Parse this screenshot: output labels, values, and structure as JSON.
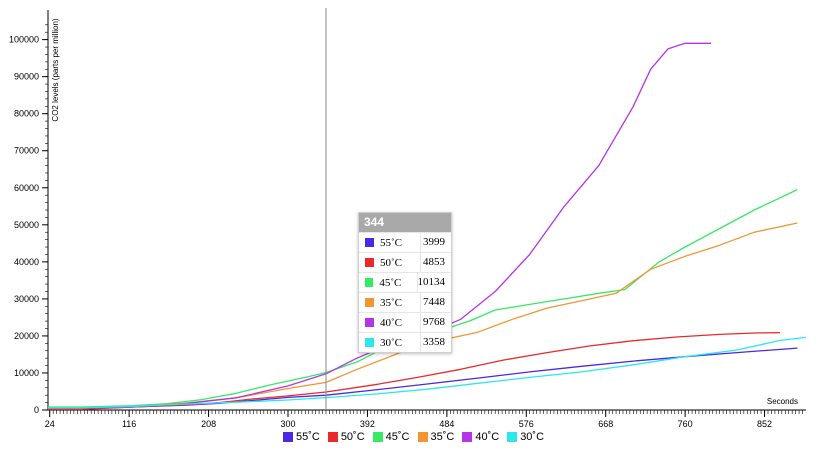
{
  "chart_data": {
    "type": "line",
    "ylabel": "CO2 levels (parts per million)",
    "xlabel": "Seconds",
    "xlim": [
      22,
      900
    ],
    "ylim": [
      0,
      108000
    ],
    "x_ticks": [
      24,
      116,
      208,
      300,
      392,
      484,
      576,
      668,
      760,
      852
    ],
    "y_ticks": [
      0,
      10000,
      20000,
      30000,
      40000,
      50000,
      60000,
      70000,
      80000,
      90000,
      100000
    ],
    "grid": false,
    "legend_position": "bottom",
    "series": [
      {
        "name": "55˚C",
        "color": "#4a28e6",
        "points": [
          [
            22,
            300
          ],
          [
            60,
            300
          ],
          [
            120,
            800
          ],
          [
            180,
            1300
          ],
          [
            220,
            1800
          ],
          [
            260,
            2600
          ],
          [
            300,
            3400
          ],
          [
            344,
            3999
          ],
          [
            400,
            5400
          ],
          [
            460,
            7000
          ],
          [
            520,
            8600
          ],
          [
            580,
            10300
          ],
          [
            640,
            11800
          ],
          [
            700,
            13200
          ],
          [
            760,
            14400
          ],
          [
            820,
            15500
          ],
          [
            890,
            16700
          ]
        ]
      },
      {
        "name": "50˚C",
        "color": "#e82a2a",
        "points": [
          [
            22,
            200
          ],
          [
            60,
            200
          ],
          [
            120,
            800
          ],
          [
            180,
            1400
          ],
          [
            220,
            2000
          ],
          [
            260,
            3000
          ],
          [
            300,
            3800
          ],
          [
            344,
            4853
          ],
          [
            400,
            6800
          ],
          [
            450,
            8800
          ],
          [
            500,
            11000
          ],
          [
            550,
            13500
          ],
          [
            600,
            15500
          ],
          [
            650,
            17300
          ],
          [
            700,
            18700
          ],
          [
            750,
            19700
          ],
          [
            800,
            20400
          ],
          [
            840,
            20800
          ],
          [
            870,
            20900
          ]
        ]
      },
      {
        "name": "45˚C",
        "color": "#36ea63",
        "points": [
          [
            22,
            800
          ],
          [
            60,
            800
          ],
          [
            120,
            1200
          ],
          [
            160,
            1700
          ],
          [
            200,
            2800
          ],
          [
            240,
            4500
          ],
          [
            280,
            6800
          ],
          [
            320,
            8800
          ],
          [
            344,
            10134
          ],
          [
            380,
            13000
          ],
          [
            430,
            19000
          ],
          [
            470,
            21000
          ],
          [
            510,
            24000
          ],
          [
            540,
            27000
          ],
          [
            580,
            28500
          ],
          [
            620,
            30000
          ],
          [
            660,
            31500
          ],
          [
            690,
            32500
          ],
          [
            730,
            40000
          ],
          [
            760,
            44000
          ],
          [
            800,
            49000
          ],
          [
            840,
            54000
          ],
          [
            890,
            59500
          ]
        ]
      },
      {
        "name": "35˚C",
        "color": "#f39530",
        "points": [
          [
            22,
            500
          ],
          [
            60,
            500
          ],
          [
            120,
            900
          ],
          [
            180,
            1800
          ],
          [
            240,
            3300
          ],
          [
            300,
            5800
          ],
          [
            344,
            7448
          ],
          [
            380,
            11000
          ],
          [
            430,
            15500
          ],
          [
            480,
            19000
          ],
          [
            520,
            21000
          ],
          [
            560,
            24500
          ],
          [
            600,
            27500
          ],
          [
            640,
            29500
          ],
          [
            680,
            31500
          ],
          [
            720,
            38000
          ],
          [
            760,
            41500
          ],
          [
            800,
            44500
          ],
          [
            840,
            48000
          ],
          [
            890,
            50500
          ]
        ]
      },
      {
        "name": "40˚C",
        "color": "#b435e8",
        "points": [
          [
            22,
            500
          ],
          [
            60,
            500
          ],
          [
            120,
            800
          ],
          [
            180,
            1700
          ],
          [
            240,
            3300
          ],
          [
            300,
            6500
          ],
          [
            344,
            9768
          ],
          [
            380,
            14000
          ],
          [
            420,
            18000
          ],
          [
            470,
            21500
          ],
          [
            500,
            24500
          ],
          [
            540,
            32000
          ],
          [
            580,
            42000
          ],
          [
            620,
            55000
          ],
          [
            660,
            66000
          ],
          [
            700,
            82000
          ],
          [
            720,
            92000
          ],
          [
            740,
            97500
          ],
          [
            760,
            99000
          ],
          [
            790,
            99000
          ]
        ]
      },
      {
        "name": "30˚C",
        "color": "#2ce8ea",
        "points": [
          [
            22,
            600
          ],
          [
            60,
            600
          ],
          [
            120,
            1000
          ],
          [
            180,
            1600
          ],
          [
            240,
            2100
          ],
          [
            300,
            2700
          ],
          [
            344,
            3358
          ],
          [
            400,
            4300
          ],
          [
            460,
            5600
          ],
          [
            520,
            7200
          ],
          [
            580,
            8800
          ],
          [
            640,
            10300
          ],
          [
            700,
            12200
          ],
          [
            760,
            14400
          ],
          [
            820,
            16200
          ],
          [
            870,
            18800
          ],
          [
            900,
            19600
          ]
        ]
      }
    ],
    "hover": {
      "x": 344,
      "title": "344",
      "rows": [
        {
          "name": "55˚C",
          "value": "3999",
          "color": "#4a28e6"
        },
        {
          "name": "50˚C",
          "value": "4853",
          "color": "#e82a2a"
        },
        {
          "name": "45˚C",
          "value": "10134",
          "color": "#36ea63"
        },
        {
          "name": "35˚C",
          "value": "7448",
          "color": "#f39530"
        },
        {
          "name": "40˚C",
          "value": "9768",
          "color": "#b435e8"
        },
        {
          "name": "30˚C",
          "value": "3358",
          "color": "#2ce8ea"
        }
      ]
    }
  }
}
